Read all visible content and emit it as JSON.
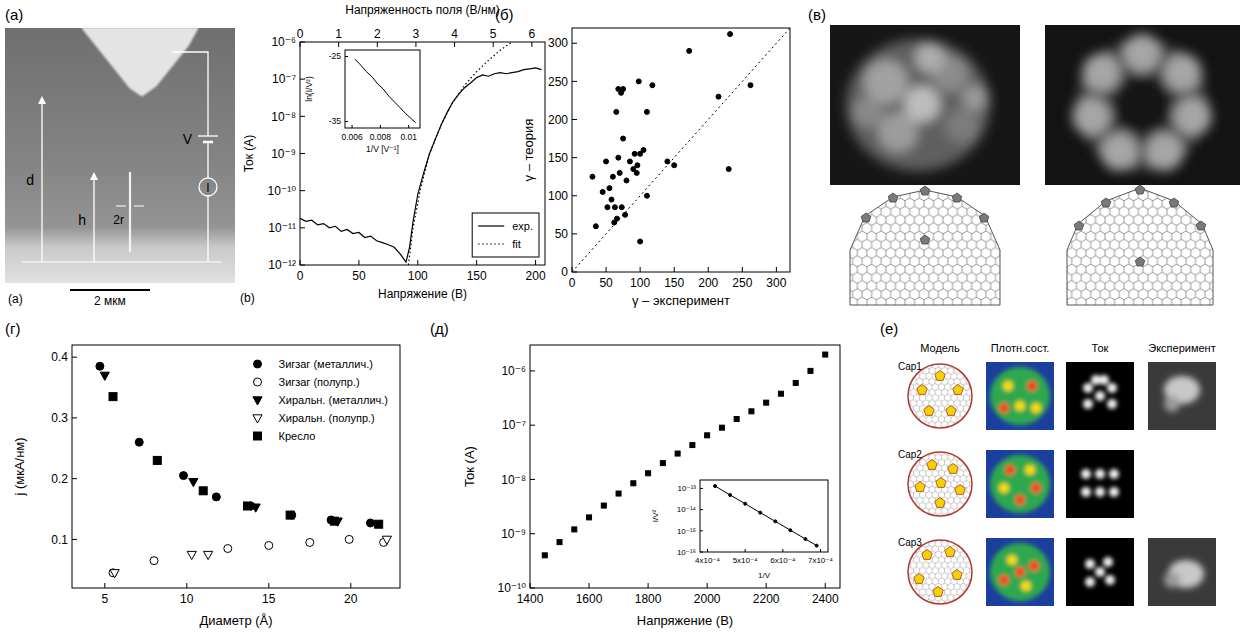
{
  "chart_data": [
    {
      "type": "line",
      "tag": "(b)",
      "x_label": "Напряжение (В)",
      "y_label": "Ток (А)",
      "x2_label": "Напряженность поля (В/нм)",
      "xlim": [
        0,
        208
      ],
      "xticks": [
        0,
        50,
        100,
        150,
        200
      ],
      "x2lim": [
        0,
        6.34
      ],
      "x2ticks": [
        0,
        1,
        2,
        3,
        4,
        5,
        6
      ],
      "ylim": [
        1e-12,
        1e-06
      ],
      "yticks": [
        {
          "value": 1e-12,
          "label": "10⁻¹²"
        },
        {
          "value": 1e-11,
          "label": "10⁻¹¹"
        },
        {
          "value": 1e-10,
          "label": "10⁻¹⁰"
        },
        {
          "value": 1e-09,
          "label": "10⁻⁹"
        },
        {
          "value": 1e-08,
          "label": "10⁻⁸"
        },
        {
          "value": 1e-07,
          "label": "10⁻⁷"
        },
        {
          "value": 1e-06,
          "label": "10⁻⁶"
        }
      ],
      "log": "y",
      "legend": "bottom-right",
      "series": [
        {
          "name": "exp.",
          "color": "#000000",
          "line_style": "solid",
          "x": [
            0,
            5,
            10,
            15,
            20,
            25,
            30,
            35,
            40,
            45,
            50,
            55,
            60,
            65,
            70,
            75,
            80,
            85,
            90,
            93,
            96,
            100,
            105,
            110,
            115,
            120,
            125,
            130,
            135,
            140,
            145,
            150,
            155,
            160,
            165,
            170,
            175,
            180,
            185,
            190,
            195,
            200,
            205
          ],
          "values": [
            1.8e-11,
            1.5e-11,
            1.6e-11,
            1.2e-11,
            1.3e-11,
            1e-11,
            1.1e-11,
            8e-12,
            9e-12,
            7e-12,
            7.5e-12,
            5.5e-12,
            6e-12,
            4.5e-12,
            4e-12,
            3.5e-12,
            3e-12,
            2e-12,
            1.2e-12,
            3e-12,
            1.5e-11,
            8e-11,
            3e-10,
            1e-09,
            2.5e-09,
            6e-09,
            1.3e-08,
            2.5e-08,
            4e-08,
            6e-08,
            8e-08,
            1.1e-07,
            1.3e-07,
            1.2e-07,
            1.4e-07,
            1.5e-07,
            1.4e-07,
            1.5e-07,
            1.6e-07,
            1.8e-07,
            1.9e-07,
            2e-07,
            1.8e-07
          ]
        },
        {
          "name": "fit",
          "color": "#000000",
          "line_style": "dotted",
          "x": [
            92,
            96,
            102,
            110,
            120,
            130,
            140,
            150,
            160,
            170,
            180
          ],
          "values": [
            1e-12,
            1e-11,
            1e-10,
            1e-09,
            6e-09,
            2.5e-08,
            7e-08,
            1.6e-07,
            3.2e-07,
            6e-07,
            1e-06
          ]
        }
      ]
    },
    {
      "type": "line",
      "x_label": "1/V [V⁻¹]",
      "y_label": "ln(I/V²)",
      "xlim": [
        0.0055,
        0.0108
      ],
      "xticks": [
        0.006,
        0.008,
        0.01
      ],
      "ylim": [
        -36,
        -24
      ],
      "yticks": [
        -25,
        -35
      ],
      "color": "#000000",
      "x": [
        0.0062,
        0.0066,
        0.007,
        0.0074,
        0.0078,
        0.0082,
        0.0086,
        0.009,
        0.0094,
        0.0098,
        0.0102,
        0.0105
      ],
      "values": [
        -25.4,
        -26.3,
        -27.3,
        -28.1,
        -29.2,
        -30.0,
        -31.1,
        -32.0,
        -32.9,
        -33.8,
        -34.6,
        -35.2
      ]
    },
    {
      "type": "scatter",
      "x_label": "γ – эксперимент",
      "y_label": "γ – теория",
      "xlim": [
        0,
        320
      ],
      "xticks": [
        0,
        50,
        100,
        150,
        200,
        250,
        300
      ],
      "ylim": [
        0,
        320
      ],
      "yticks": [
        0,
        50,
        100,
        150,
        200,
        250,
        300
      ],
      "marker": "circle",
      "color": "#000000",
      "x": [
        30,
        35,
        45,
        50,
        52,
        55,
        58,
        60,
        62,
        63,
        65,
        66,
        68,
        68,
        70,
        72,
        73,
        75,
        75,
        78,
        80,
        85,
        90,
        92,
        95,
        96,
        98,
        100,
        100,
        105,
        110,
        110,
        118,
        140,
        150,
        172,
        215,
        230,
        232,
        262
      ],
      "values": [
        125,
        60,
        105,
        145,
        85,
        110,
        95,
        125,
        65,
        85,
        210,
        70,
        150,
        240,
        130,
        235,
        85,
        240,
        175,
        75,
        120,
        145,
        135,
        155,
        130,
        140,
        250,
        40,
        155,
        160,
        100,
        210,
        245,
        145,
        140,
        290,
        230,
        135,
        312,
        245
      ]
    },
    {
      "type": "scatter",
      "x_label": "Диаметр (Å)",
      "y_label": "j (мкА/нм)",
      "xlim": [
        3,
        23
      ],
      "xticks": [
        5,
        10,
        15,
        20
      ],
      "ylim": [
        0.02,
        0.42
      ],
      "yticks": [
        0.1,
        0.2,
        0.3,
        0.4
      ],
      "legend": "top-right",
      "series": [
        {
          "name": "Зигзаг (металлич.)",
          "marker": "circle",
          "color": "#000000",
          "x": [
            4.7,
            7.1,
            9.8,
            11.8,
            13.9,
            16.4,
            18.8,
            21.2
          ],
          "values": [
            0.385,
            0.26,
            0.205,
            0.17,
            0.155,
            0.14,
            0.132,
            0.127
          ]
        },
        {
          "name": "Зигзаг (полупр.)",
          "marker": "circle-open",
          "color": "#000000",
          "x": [
            5.5,
            8.0,
            12.5,
            15.0,
            17.5,
            19.9,
            22.0
          ],
          "values": [
            0.045,
            0.065,
            0.085,
            0.09,
            0.095,
            0.1,
            0.095
          ]
        },
        {
          "name": "Хиральн. (металлич.)",
          "marker": "triangle-down",
          "color": "#000000",
          "x": [
            5.0,
            10.4,
            14.2,
            19.2
          ],
          "values": [
            0.37,
            0.195,
            0.153,
            0.13
          ]
        },
        {
          "name": "Хиральн. (полупр.)",
          "marker": "triangle-down-open",
          "color": "#000000",
          "x": [
            5.6,
            10.3,
            11.3,
            22.2
          ],
          "values": [
            0.045,
            0.075,
            0.075,
            0.1
          ]
        },
        {
          "name": "Кресло",
          "marker": "square",
          "color": "#000000",
          "x": [
            5.5,
            8.2,
            11.0,
            13.7,
            16.3,
            19.0,
            21.7
          ],
          "values": [
            0.335,
            0.23,
            0.18,
            0.155,
            0.14,
            0.13,
            0.125
          ]
        }
      ]
    },
    {
      "type": "scatter",
      "x_label": "Напряжение (В)",
      "y_label": "Ток (А)",
      "xlim": [
        1400,
        2450
      ],
      "xticks": [
        1400,
        1600,
        1800,
        2000,
        2200,
        2400
      ],
      "ylim": [
        1e-10,
        3e-06
      ],
      "yticks": [
        {
          "value": 1e-10,
          "label": "10⁻¹⁰"
        },
        {
          "value": 1e-09,
          "label": "10⁻⁹"
        },
        {
          "value": 1e-08,
          "label": "10⁻⁸"
        },
        {
          "value": 1e-07,
          "label": "10⁻⁷"
        },
        {
          "value": 1e-06,
          "label": "10⁻⁶"
        }
      ],
      "log": "y",
      "marker": "square",
      "color": "#000000",
      "x": [
        1450,
        1500,
        1550,
        1600,
        1650,
        1700,
        1750,
        1800,
        1850,
        1900,
        1950,
        2000,
        2050,
        2100,
        2150,
        2200,
        2250,
        2300,
        2350,
        2400
      ],
      "values": [
        4e-10,
        7e-10,
        1.2e-09,
        2e-09,
        3.3e-09,
        5.5e-09,
        8.5e-09,
        1.3e-08,
        2e-08,
        3e-08,
        4.3e-08,
        6.5e-08,
        9e-08,
        1.3e-07,
        1.8e-07,
        2.6e-07,
        3.8e-07,
        6e-07,
        1e-06,
        2e-06
      ]
    },
    {
      "type": "line",
      "x_label": "1/V",
      "y_label": "I/V²",
      "marker": "circle",
      "color": "#000000",
      "xlim": [
        0.00038,
        0.00072
      ],
      "xticks": [
        {
          "value": 0.0004,
          "label": "4x10⁻⁴"
        },
        {
          "value": 0.0005,
          "label": "5x10⁻⁴"
        },
        {
          "value": 0.0006,
          "label": "6x10⁻⁴"
        },
        {
          "value": 0.0007,
          "label": "7x10⁻⁴"
        }
      ],
      "ylim": [
        1e-16,
        2.5e-13
      ],
      "yticks": [
        {
          "value": 1e-13,
          "label": "10⁻¹³"
        },
        {
          "value": 1e-14,
          "label": "10⁻¹⁴"
        },
        {
          "value": 1e-15,
          "label": "10⁻¹⁵"
        },
        {
          "value": 1e-16,
          "label": "10⁻¹⁶"
        }
      ],
      "log": "y",
      "x": [
        0.00042,
        0.00046,
        0.0005,
        0.00054,
        0.00058,
        0.00062,
        0.00066,
        0.00069
      ],
      "values": [
        1.3e-13,
        4.9e-14,
        1.9e-14,
        7.2e-15,
        2.8e-15,
        1.07e-15,
        4.1e-16,
        2e-16
      ]
    }
  ],
  "figure": {
    "panel_labels": [
      "(a)",
      "(б)",
      "(в)",
      "(г)",
      "(д)",
      "(е)"
    ],
    "sem": {
      "labels": [
        "d",
        "h",
        "2r",
        "V",
        "I"
      ],
      "tag": "(a)",
      "scale_bar": "2 мкм"
    },
    "table": {
      "columns": [
        "Модель",
        "Плотн.сост.",
        "Ток",
        "Эксперимент"
      ],
      "rows": [
        "Cap1",
        "Cap2",
        "Cap3"
      ]
    }
  }
}
